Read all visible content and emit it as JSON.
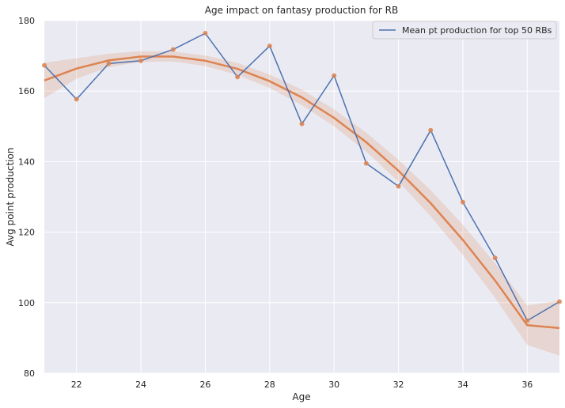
{
  "chart_data": {
    "type": "line",
    "title": "Age impact on fantasy production for RB",
    "xlabel": "Age",
    "ylabel": "Avg point production",
    "xlim": [
      21,
      37
    ],
    "ylim": [
      80,
      180
    ],
    "xticks": [
      22,
      24,
      26,
      28,
      30,
      32,
      34,
      36
    ],
    "yticks": [
      80,
      100,
      120,
      140,
      160,
      180
    ],
    "grid": true,
    "legend": {
      "position": "top-right",
      "entries": [
        "Mean pt production for top 50 RBs"
      ]
    },
    "series": [
      {
        "name": "Mean pt production for top 50 RBs",
        "color": "#4c72b0",
        "x": [
          21,
          22,
          23,
          24,
          25,
          26,
          27,
          28,
          29,
          30,
          31,
          32,
          33,
          34,
          35,
          36,
          37
        ],
        "y": [
          167.3,
          157.7,
          167.8,
          168.6,
          171.8,
          176.4,
          164.0,
          172.8,
          150.7,
          164.4,
          139.5,
          133.0,
          148.9,
          128.5,
          112.7,
          94.9,
          100.3
        ]
      }
    ],
    "scatter_color": "#dd8452",
    "fit": {
      "color": "#dd8452",
      "x": [
        21,
        22,
        23,
        24,
        25,
        26,
        27,
        28,
        29,
        30,
        31,
        32,
        33,
        34,
        35,
        36,
        37
      ],
      "y": [
        163.0,
        166.4,
        168.7,
        169.8,
        169.8,
        168.6,
        166.3,
        162.8,
        158.2,
        152.4,
        145.5,
        137.4,
        128.2,
        117.8,
        106.3,
        93.6,
        92.8
      ],
      "ci_lower": [
        158.0,
        163.5,
        166.8,
        168.3,
        168.4,
        167.1,
        164.6,
        160.9,
        156.0,
        150.0,
        142.8,
        134.3,
        124.5,
        113.5,
        101.4,
        88.0,
        85.0
      ],
      "ci_upper": [
        168.0,
        169.3,
        170.6,
        171.3,
        171.2,
        170.1,
        168.0,
        164.7,
        160.4,
        154.8,
        148.2,
        140.5,
        131.9,
        122.1,
        111.2,
        99.2,
        100.6
      ]
    }
  }
}
